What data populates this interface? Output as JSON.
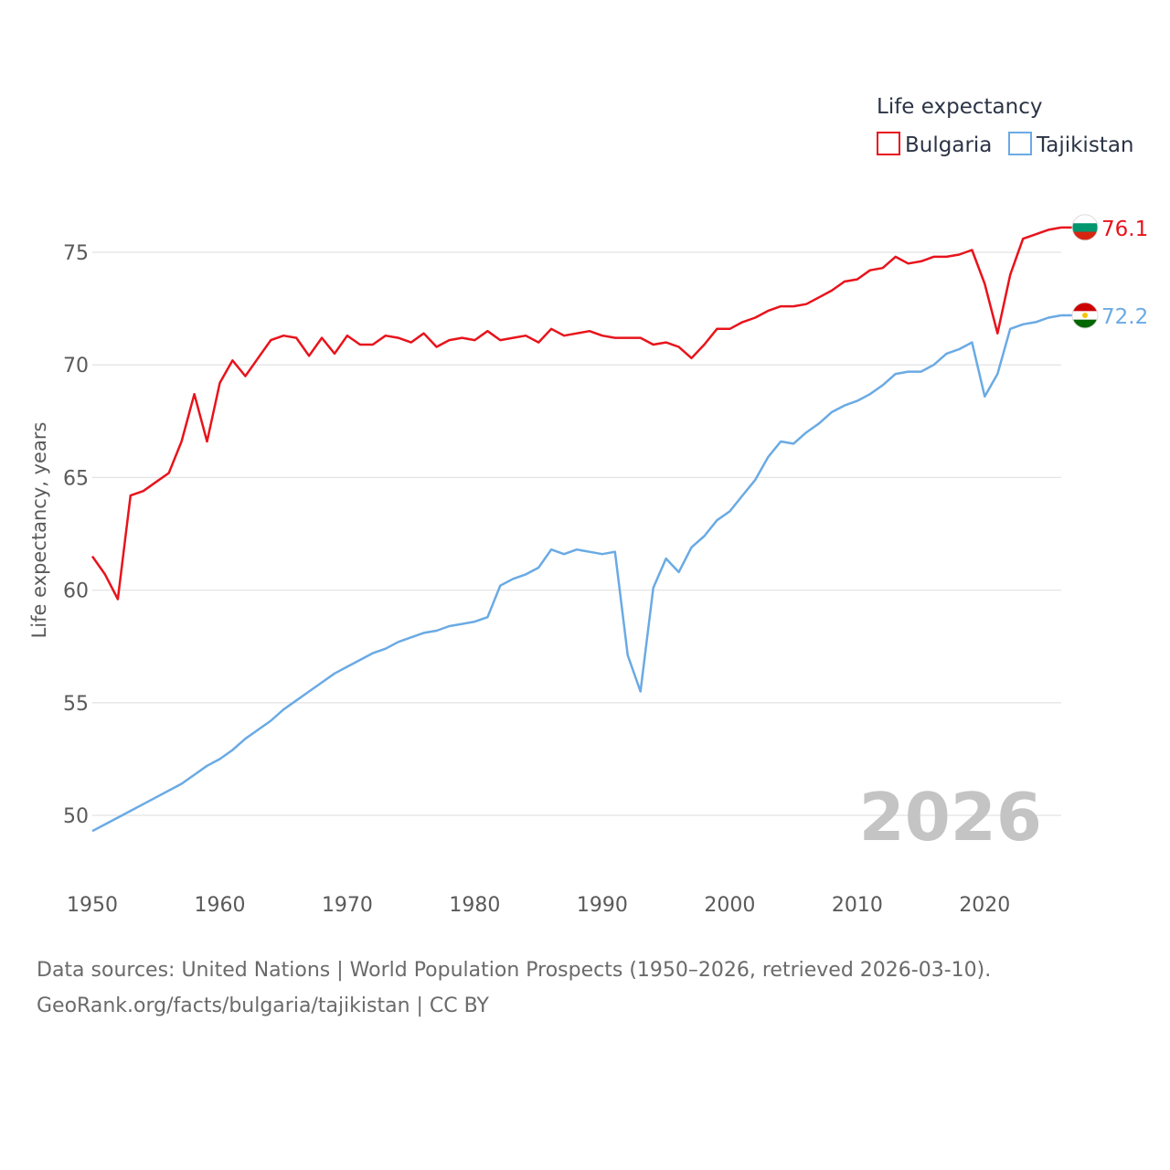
{
  "chart_data": {
    "type": "line",
    "title": "",
    "xlabel": "",
    "ylabel": "Life expectancy, years",
    "xlim": [
      1950,
      2026
    ],
    "ylim": [
      48,
      77
    ],
    "xticks": [
      1950,
      1960,
      1970,
      1980,
      1990,
      2000,
      2010,
      2020
    ],
    "yticks": [
      50,
      55,
      60,
      65,
      70,
      75
    ],
    "legend": {
      "title": "Life expectancy",
      "placement": "top-right"
    },
    "year_label": "2026",
    "series": [
      {
        "name": "Bulgaria",
        "color": "#e8131b",
        "end_label": "76.1",
        "flag_icon": "bulgaria-flag-icon",
        "x": [
          1950,
          1951,
          1952,
          1953,
          1954,
          1955,
          1956,
          1957,
          1958,
          1959,
          1960,
          1961,
          1962,
          1963,
          1964,
          1965,
          1966,
          1967,
          1968,
          1969,
          1970,
          1971,
          1972,
          1973,
          1974,
          1975,
          1976,
          1977,
          1978,
          1979,
          1980,
          1981,
          1982,
          1983,
          1984,
          1985,
          1986,
          1987,
          1988,
          1989,
          1990,
          1991,
          1992,
          1993,
          1994,
          1995,
          1996,
          1997,
          1998,
          1999,
          2000,
          2001,
          2002,
          2003,
          2004,
          2005,
          2006,
          2007,
          2008,
          2009,
          2010,
          2011,
          2012,
          2013,
          2014,
          2015,
          2016,
          2017,
          2018,
          2019,
          2020,
          2021,
          2022,
          2023,
          2024,
          2025,
          2026
        ],
        "values": [
          61.5,
          60.7,
          59.6,
          64.2,
          64.4,
          64.8,
          65.2,
          66.6,
          68.7,
          66.6,
          69.2,
          70.2,
          69.5,
          70.3,
          71.1,
          71.3,
          71.2,
          70.4,
          71.2,
          70.5,
          71.3,
          70.9,
          70.9,
          71.3,
          71.2,
          71.0,
          71.4,
          70.8,
          71.1,
          71.2,
          71.1,
          71.5,
          71.1,
          71.2,
          71.3,
          71.0,
          71.6,
          71.3,
          71.4,
          71.5,
          71.3,
          71.2,
          71.2,
          71.2,
          70.9,
          71.0,
          70.8,
          70.3,
          70.9,
          71.6,
          71.6,
          71.9,
          72.1,
          72.4,
          72.6,
          72.6,
          72.7,
          73.0,
          73.3,
          73.7,
          73.8,
          74.2,
          74.3,
          74.8,
          74.5,
          74.6,
          74.8,
          74.8,
          74.9,
          75.1,
          73.6,
          71.4,
          74.0,
          75.6,
          75.8,
          76.0,
          76.1
        ]
      },
      {
        "name": "Tajikistan",
        "color": "#6aaae4",
        "end_label": "72.2",
        "flag_icon": "tajikistan-flag-icon",
        "x": [
          1950,
          1951,
          1952,
          1953,
          1954,
          1955,
          1956,
          1957,
          1958,
          1959,
          1960,
          1961,
          1962,
          1963,
          1964,
          1965,
          1966,
          1967,
          1968,
          1969,
          1970,
          1971,
          1972,
          1973,
          1974,
          1975,
          1976,
          1977,
          1978,
          1979,
          1980,
          1981,
          1982,
          1983,
          1984,
          1985,
          1986,
          1987,
          1988,
          1989,
          1990,
          1991,
          1992,
          1993,
          1994,
          1995,
          1996,
          1997,
          1998,
          1999,
          2000,
          2001,
          2002,
          2003,
          2004,
          2005,
          2006,
          2007,
          2008,
          2009,
          2010,
          2011,
          2012,
          2013,
          2014,
          2015,
          2016,
          2017,
          2018,
          2019,
          2020,
          2021,
          2022,
          2023,
          2024,
          2025,
          2026
        ],
        "values": [
          49.3,
          49.6,
          49.9,
          50.2,
          50.5,
          50.8,
          51.1,
          51.4,
          51.8,
          52.2,
          52.5,
          52.9,
          53.4,
          53.8,
          54.2,
          54.7,
          55.1,
          55.5,
          55.9,
          56.3,
          56.6,
          56.9,
          57.2,
          57.4,
          57.7,
          57.9,
          58.1,
          58.2,
          58.4,
          58.5,
          58.6,
          58.8,
          60.2,
          60.5,
          60.7,
          61.0,
          61.8,
          61.6,
          61.8,
          61.7,
          61.6,
          61.7,
          57.1,
          55.5,
          60.1,
          61.4,
          60.8,
          61.9,
          62.4,
          63.1,
          63.5,
          64.2,
          64.9,
          65.9,
          66.6,
          66.5,
          67.0,
          67.4,
          67.9,
          68.2,
          68.4,
          68.7,
          69.1,
          69.6,
          69.7,
          69.7,
          70.0,
          70.5,
          70.7,
          71.0,
          68.6,
          69.6,
          71.6,
          71.8,
          71.9,
          72.1,
          72.2
        ]
      }
    ]
  },
  "source": {
    "line1": "Data sources: United Nations | World Population Prospects (1950–2026, retrieved 2026-03-10).",
    "line2": "GeoRank.org/facts/bulgaria/tajikistan | CC BY"
  }
}
